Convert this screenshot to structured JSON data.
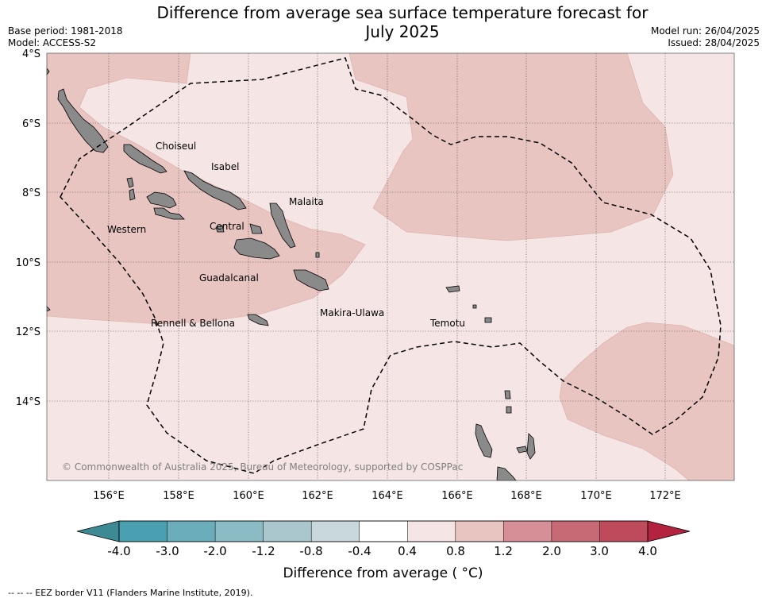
{
  "header": {
    "title_line1": "Difference from average sea surface temperature forecast for",
    "title_line2": "July 2025",
    "base_period": "Base period: 1981-2018",
    "model": "Model: ACCESS-S2",
    "model_run": "Model run: 26/04/2025",
    "issued": "Issued: 28/04/2025"
  },
  "map": {
    "lat_labels": [
      "4°S",
      "6°S",
      "8°S",
      "10°S",
      "12°S",
      "14°S"
    ],
    "lon_labels": [
      "156°E",
      "158°E",
      "160°E",
      "162°E",
      "164°E",
      "166°E",
      "168°E",
      "170°E",
      "172°E"
    ],
    "regions": [
      "Choiseul",
      "Isabel",
      "Malaita",
      "Western",
      "Central",
      "Guadalcanal",
      "Makira-Ulawa",
      "Rennell & Bellona",
      "Temotu"
    ],
    "copyright": "© Commonwealth of Australia 2025, Bureau of Meteorology, supported by COSPPac",
    "land_color": "#8a8a8a",
    "anomaly_colors": {
      "0.4_to_0.8": "#f5e6e5",
      "0.8_to_1.2": "#e8c5c1"
    }
  },
  "colorbar": {
    "ticks": [
      "-4.0",
      "-3.0",
      "-2.0",
      "-1.2",
      "-0.8",
      "-0.4",
      "0.4",
      "0.8",
      "1.2",
      "2.0",
      "3.0",
      "4.0"
    ],
    "colors": [
      "#4aa0b0",
      "#6badbb",
      "#8bbcc5",
      "#a9c7cc",
      "#c8d8dc",
      "#ffffff",
      "#f5e6e5",
      "#e8c5c1",
      "#d68f97",
      "#c86a76",
      "#bf4a5b"
    ],
    "under_color": "#3e8a94",
    "over_color": "#b3223f",
    "title": "Difference from average ( °C)"
  },
  "footnote": "-- -- -- EEZ border V11 (Flanders Marine Institute, 2019)."
}
